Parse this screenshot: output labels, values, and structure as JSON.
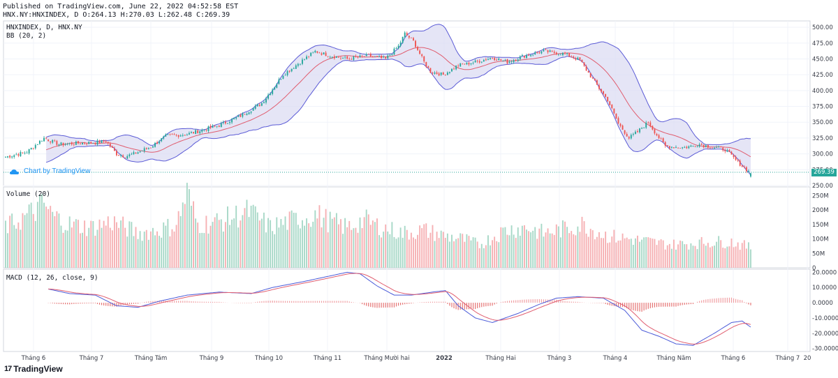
{
  "header": {
    "published": "Published on TradingView.com, June 22, 2022 04:52:58 EST",
    "ohlc": "HNX.NY:HNXINDEX, D O:264.13 H:270.03 L:262.48 C:269.39"
  },
  "panes": {
    "price_title": "HNXINDEX, D, HNX.NY",
    "bb_title": "BB (20, 2)",
    "volume_title": "Volume (20)",
    "macd_title": "MACD (12, 26, close, 9)"
  },
  "watermark": "Chart by TradingView",
  "last_price_label": "269.39",
  "brand": {
    "logo": "17",
    "name": "TradingView"
  },
  "colors": {
    "up": "#26a69a",
    "down": "#ef5350",
    "band_fill": "#dcdcf3",
    "band_line": "#5b5bd6",
    "basis": "#e05d6f",
    "macd": "#4a5ad8",
    "signal": "#e05d6f",
    "vol_up": "#a7d8c7",
    "vol_down": "#f6b0b3"
  },
  "chart_data": {
    "type": "candlestick",
    "symbol": "HNX.NY:HNXINDEX",
    "interval": "D",
    "last": {
      "open": 264.13,
      "high": 270.03,
      "low": 262.48,
      "close": 269.39
    },
    "x_ticks": [
      "Tháng 6",
      "Tháng 7",
      "Tháng Tám",
      "Tháng 9",
      "Tháng 10",
      "Tháng 11",
      "Tháng Mười hai",
      "2022",
      "Tháng Hai",
      "Tháng 3",
      "Tháng 4",
      "Tháng Năm",
      "Tháng 6",
      "Tháng 7",
      "20"
    ],
    "price_axis": {
      "ylim": [
        250,
        510
      ],
      "ticks": [
        "500.00",
        "475.00",
        "450.00",
        "425.00",
        "400.00",
        "375.00",
        "350.00",
        "325.00",
        "300.00",
        "275.00",
        "250.00"
      ]
    },
    "volume_axis": {
      "ylim": [
        0,
        280
      ],
      "unit": "M",
      "ticks": [
        "250M",
        "200M",
        "150M",
        "100M",
        "50M",
        "0"
      ]
    },
    "macd_axis": {
      "ylim": [
        -32,
        22
      ],
      "ticks": [
        "20.0000",
        "10.0000",
        "0.0000",
        "-10.0000",
        "-20.0000",
        "-30.0000"
      ]
    },
    "close_anchors": [
      [
        0,
        295
      ],
      [
        10,
        303
      ],
      [
        18,
        325
      ],
      [
        25,
        315
      ],
      [
        35,
        317
      ],
      [
        42,
        318
      ],
      [
        47,
        320
      ],
      [
        52,
        300
      ],
      [
        56,
        296
      ],
      [
        60,
        300
      ],
      [
        68,
        311
      ],
      [
        75,
        328
      ],
      [
        85,
        331
      ],
      [
        100,
        345
      ],
      [
        110,
        360
      ],
      [
        120,
        380
      ],
      [
        130,
        425
      ],
      [
        138,
        445
      ],
      [
        145,
        462
      ],
      [
        152,
        455
      ],
      [
        160,
        450
      ],
      [
        170,
        455
      ],
      [
        178,
        450
      ],
      [
        184,
        470
      ],
      [
        187,
        490
      ],
      [
        191,
        478
      ],
      [
        196,
        445
      ],
      [
        199,
        430
      ],
      [
        205,
        425
      ],
      [
        212,
        440
      ],
      [
        220,
        445
      ],
      [
        228,
        452
      ],
      [
        235,
        445
      ],
      [
        243,
        455
      ],
      [
        252,
        462
      ],
      [
        262,
        458
      ],
      [
        269,
        448
      ],
      [
        275,
        418
      ],
      [
        282,
        385
      ],
      [
        287,
        348
      ],
      [
        292,
        325
      ],
      [
        296,
        335
      ],
      [
        301,
        350
      ],
      [
        305,
        330
      ],
      [
        309,
        312
      ],
      [
        318,
        310
      ],
      [
        325,
        315
      ],
      [
        332,
        310
      ],
      [
        337,
        307
      ],
      [
        342,
        290
      ],
      [
        346,
        278
      ],
      [
        349,
        269.39
      ]
    ],
    "volume_anchors": [
      [
        0,
        140
      ],
      [
        10,
        180
      ],
      [
        18,
        220
      ],
      [
        22,
        180
      ],
      [
        30,
        150
      ],
      [
        40,
        140
      ],
      [
        50,
        160
      ],
      [
        62,
        120
      ],
      [
        72,
        130
      ],
      [
        80,
        150
      ],
      [
        85,
        260
      ],
      [
        90,
        150
      ],
      [
        100,
        160
      ],
      [
        108,
        180
      ],
      [
        114,
        195
      ],
      [
        124,
        140
      ],
      [
        135,
        165
      ],
      [
        145,
        185
      ],
      [
        152,
        160
      ],
      [
        160,
        140
      ],
      [
        168,
        165
      ],
      [
        176,
        140
      ],
      [
        186,
        120
      ],
      [
        196,
        130
      ],
      [
        206,
        110
      ],
      [
        214,
        100
      ],
      [
        222,
        80
      ],
      [
        234,
        130
      ],
      [
        244,
        140
      ],
      [
        252,
        120
      ],
      [
        262,
        135
      ],
      [
        270,
        150
      ],
      [
        282,
        110
      ],
      [
        292,
        100
      ],
      [
        302,
        90
      ],
      [
        312,
        80
      ],
      [
        322,
        85
      ],
      [
        332,
        90
      ],
      [
        340,
        90
      ],
      [
        349,
        70
      ]
    ],
    "macd_anchors": [
      [
        20,
        9
      ],
      [
        30,
        6
      ],
      [
        42,
        5
      ],
      [
        52,
        -2
      ],
      [
        62,
        -3
      ],
      [
        72,
        1
      ],
      [
        85,
        5
      ],
      [
        100,
        7
      ],
      [
        115,
        6
      ],
      [
        125,
        10
      ],
      [
        140,
        14
      ],
      [
        150,
        17
      ],
      [
        160,
        20
      ],
      [
        166,
        19
      ],
      [
        174,
        11
      ],
      [
        182,
        5
      ],
      [
        190,
        5
      ],
      [
        200,
        7
      ],
      [
        206,
        8
      ],
      [
        212,
        -2
      ],
      [
        220,
        -10
      ],
      [
        228,
        -13
      ],
      [
        240,
        -7
      ],
      [
        250,
        -1
      ],
      [
        258,
        3
      ],
      [
        268,
        4
      ],
      [
        280,
        3
      ],
      [
        290,
        -5
      ],
      [
        298,
        -18
      ],
      [
        306,
        -22
      ],
      [
        314,
        -27
      ],
      [
        322,
        -28
      ],
      [
        332,
        -20
      ],
      [
        340,
        -13
      ],
      [
        345,
        -12
      ],
      [
        349,
        -16
      ]
    ]
  }
}
